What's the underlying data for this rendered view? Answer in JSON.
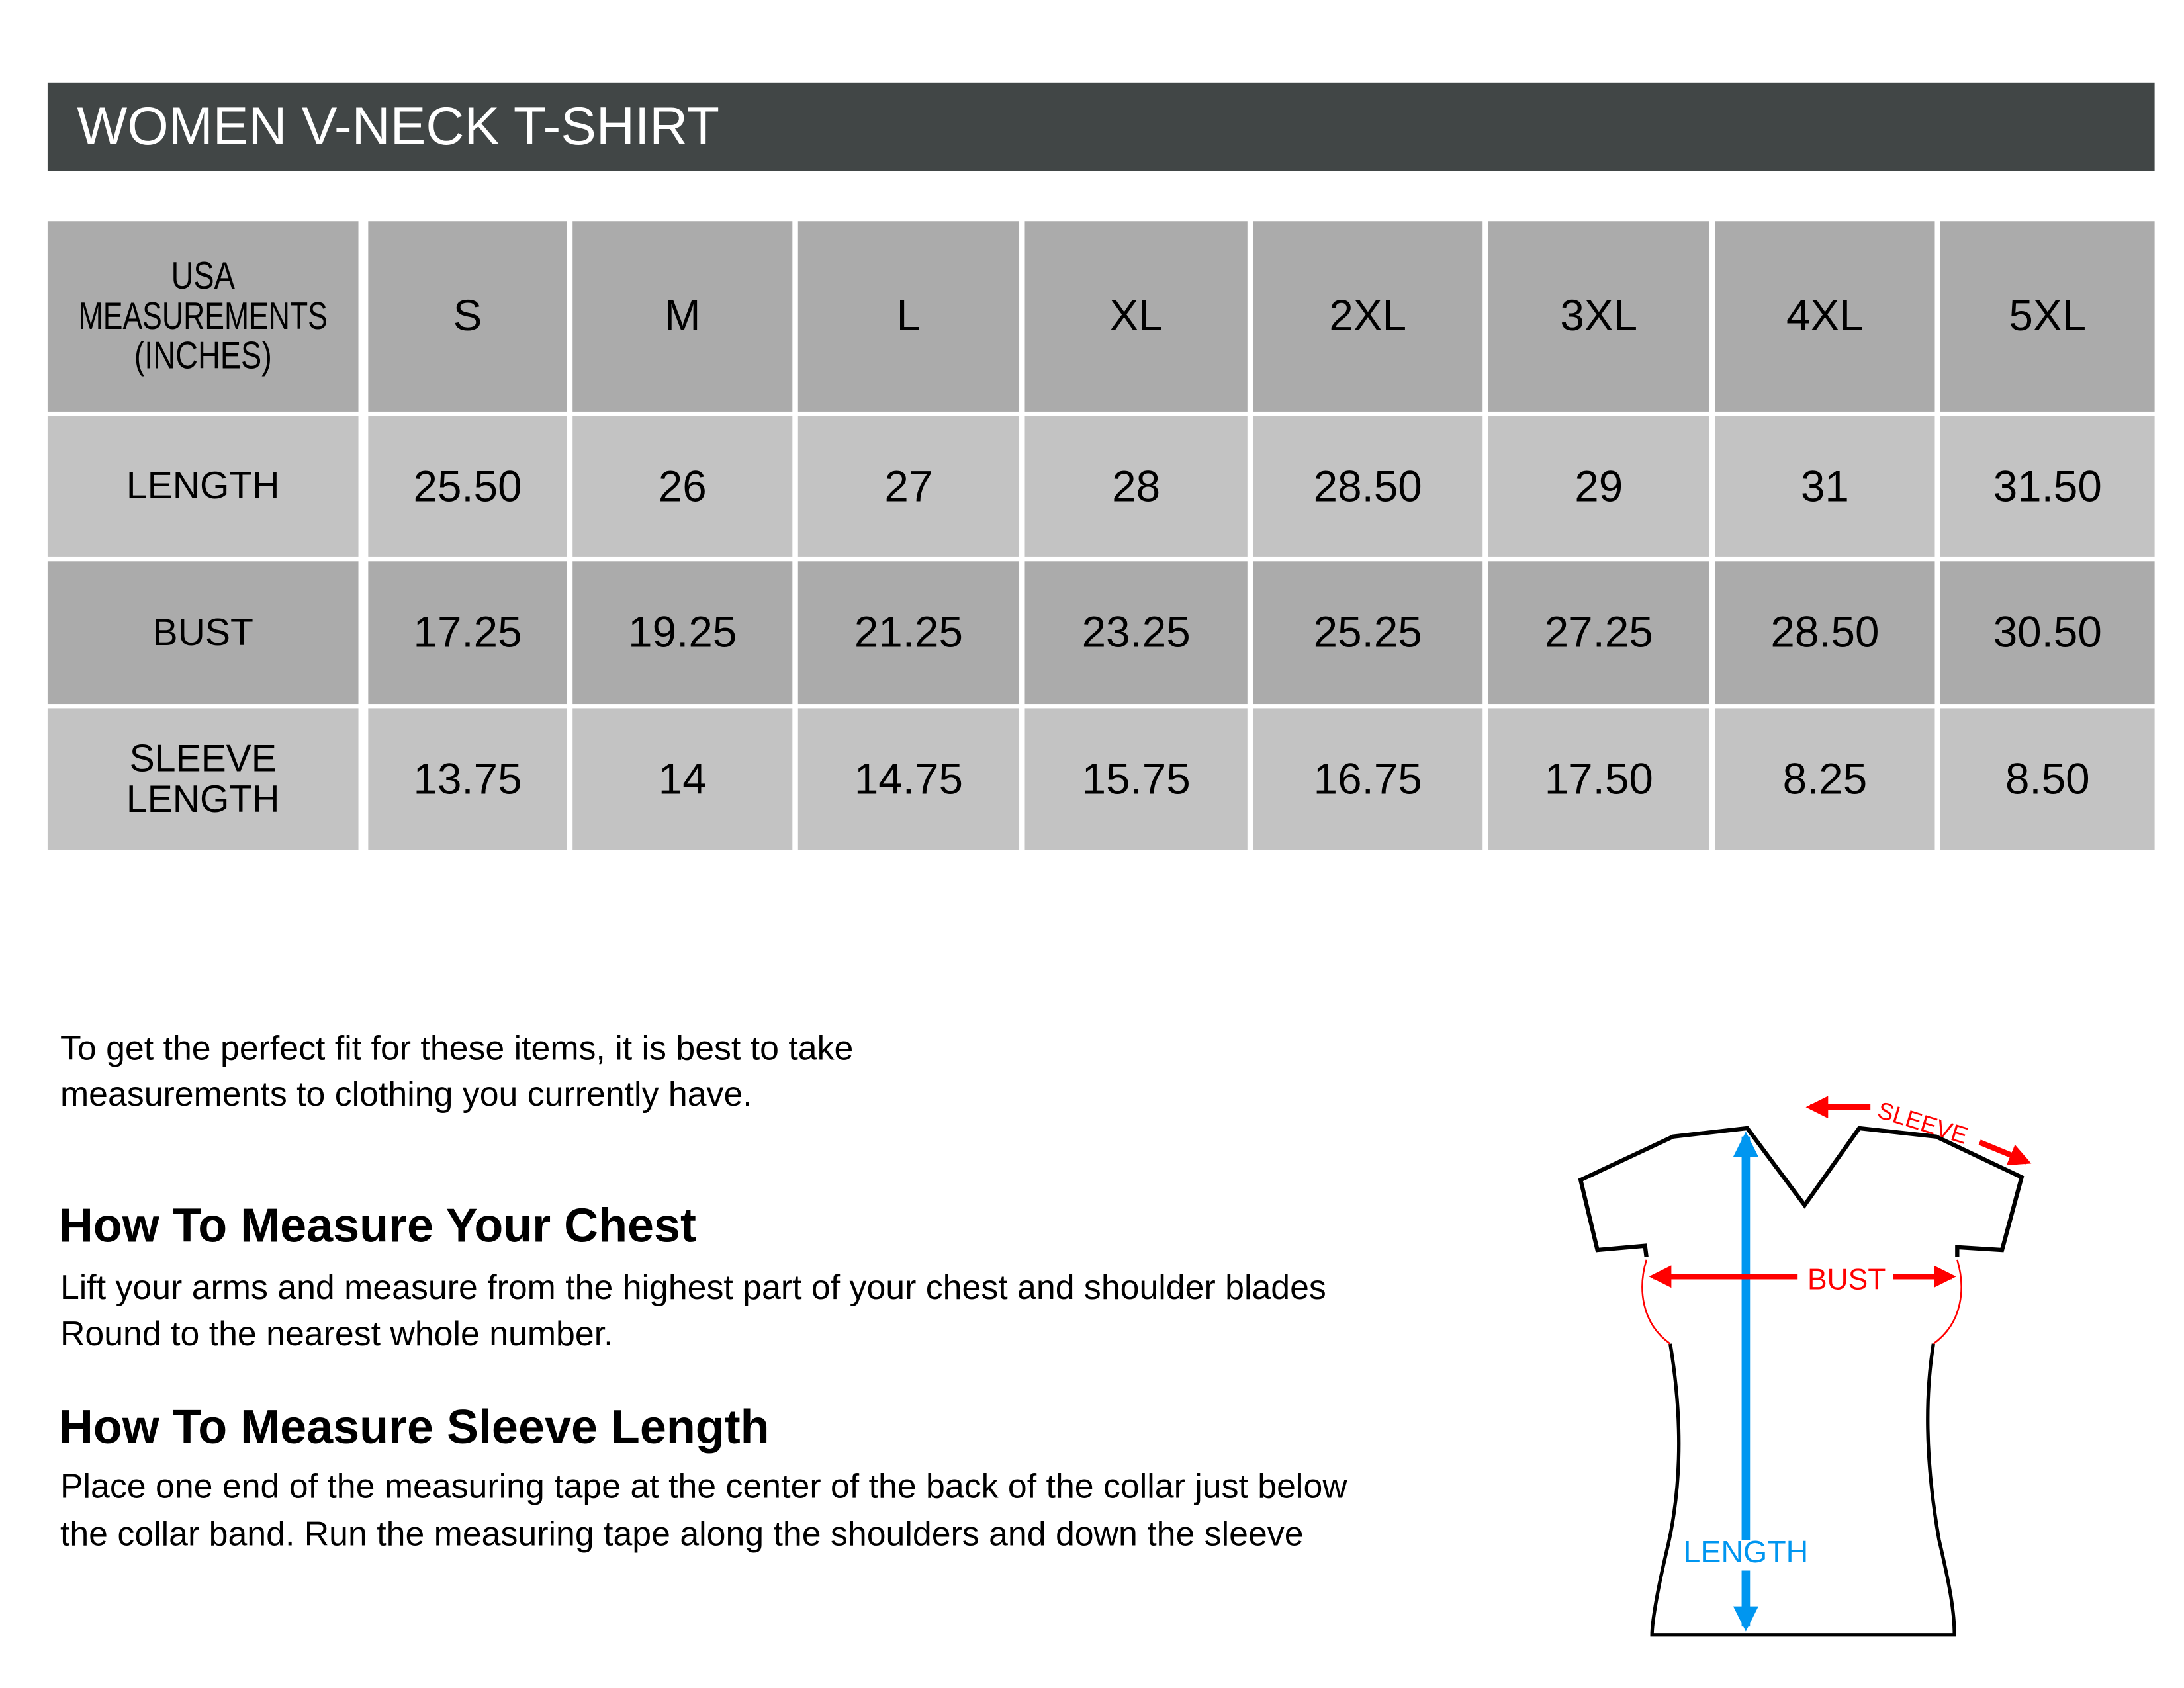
{
  "title": "WOMEN V-NECK T-SHIRT",
  "table": {
    "corner_label": [
      "USA",
      "MEASUREMENTS",
      "(INCHES)"
    ],
    "sizes": [
      "S",
      "M",
      "L",
      "XL",
      "2XL",
      "3XL",
      "4XL",
      "5XL"
    ],
    "rows": [
      {
        "label": [
          "LENGTH"
        ],
        "values": [
          "25.50",
          "26",
          "27",
          "28",
          "28.50",
          "29",
          "31",
          "31.50"
        ]
      },
      {
        "label": [
          "BUST"
        ],
        "values": [
          "17.25",
          "19.25",
          "21.25",
          "23.25",
          "25.25",
          "27.25",
          "28.50",
          "30.50"
        ]
      },
      {
        "label": [
          "SLEEVE",
          "LENGTH"
        ],
        "values": [
          "13.75",
          "14",
          "14.75",
          "15.75",
          "16.75",
          "17.50",
          "8.25",
          "8.50"
        ]
      }
    ]
  },
  "intro": [
    "To get the perfect fit for these items, it is best to take",
    "measurements to clothing you currently have."
  ],
  "chest": {
    "heading": "How To Measure Your Chest",
    "lines": [
      "Lift your arms and measure from the highest part of your chest and shoulder blades",
      "Round to the nearest whole number."
    ]
  },
  "sleeve": {
    "heading": "How To Measure Sleeve Length",
    "lines": [
      "Place one end of the measuring tape at the center of the back of the collar just below",
      "the collar band. Run the measuring tape along the shoulders and down the sleeve"
    ]
  },
  "diagram": {
    "sleeve_label": "SLEEVE",
    "bust_label": "BUST",
    "length_label": "LENGTH"
  },
  "colors": {
    "header_bar": "#414646",
    "header_row": "#ababab",
    "light_row": "#c3c3c3",
    "red": "#ff0000",
    "blue": "#0096f0"
  }
}
